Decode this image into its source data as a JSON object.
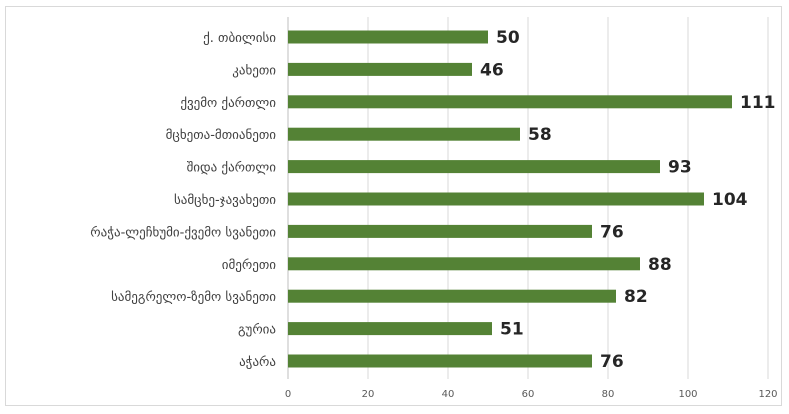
{
  "chart_data": {
    "type": "bar",
    "orientation": "horizontal",
    "title": "",
    "xlabel": "",
    "ylabel": "",
    "categories": [
      "ქ. თბილისი",
      "კახეთი",
      "ქვემო ქართლი",
      "მცხეთა-მთიანეთი",
      "შიდა ქართლი",
      "სამცხე-ჯავახეთი",
      "რაჭა-ლეჩხუმი-ქვემო სვანეთი",
      "იმერეთი",
      "სამეგრელო-ზემო სვანეთი",
      "გურია",
      "აჭარა"
    ],
    "values": [
      50,
      46,
      111,
      58,
      93,
      104,
      76,
      88,
      82,
      51,
      76
    ],
    "xlim": [
      0,
      120
    ],
    "x_ticks": [
      0,
      20,
      40,
      60,
      80,
      100,
      120
    ],
    "grid": true,
    "legend": "none",
    "colors": {
      "bar": "#548235",
      "grid": "#d9d9d9"
    }
  }
}
